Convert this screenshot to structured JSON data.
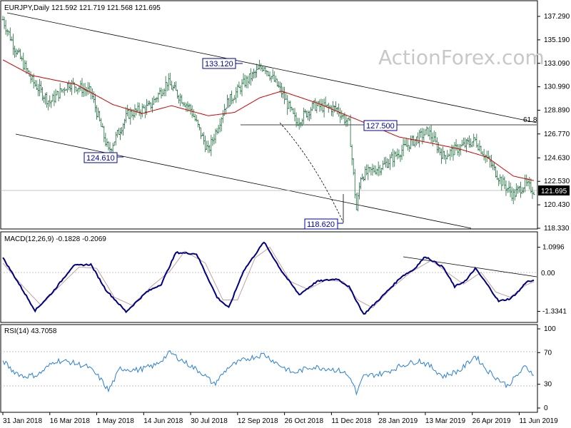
{
  "chart_data": [
    {
      "type": "candlestick",
      "panel": "price",
      "header": "EURJPY,Daily  121.592 121.719 121.568 121.695",
      "ylim": [
        118.33,
        138.5
      ],
      "y_ticks": [
        "137.290",
        "135.190",
        "133.090",
        "130.990",
        "128.890",
        "126.770",
        "124.630",
        "122.530",
        "120.430",
        "118.330"
      ],
      "current_price_label": "121.695",
      "current_price": 121.695,
      "fib_label": "61.8",
      "watermark": "ActionForex.com",
      "ma_color": "#cc0000",
      "bar_color": "#1a6b3a",
      "annotations": [
        {
          "text": "133.120",
          "date_index": 178,
          "value": 133.12
        },
        {
          "text": "124.610",
          "date_index": 72,
          "value": 124.61
        },
        {
          "text": "127.500",
          "date_index": 370,
          "value": 127.5
        },
        {
          "text": "118.620",
          "date_index": 242,
          "value": 118.62
        }
      ],
      "close_anchors": [
        [
          0,
          137.0
        ],
        [
          8,
          134.5
        ],
        [
          20,
          131.5
        ],
        [
          32,
          129.6
        ],
        [
          45,
          131.3
        ],
        [
          60,
          130.5
        ],
        [
          72,
          125.2
        ],
        [
          85,
          128.5
        ],
        [
          100,
          129.2
        ],
        [
          112,
          131.4
        ],
        [
          128,
          129.0
        ],
        [
          140,
          125.2
        ],
        [
          152,
          129.4
        ],
        [
          165,
          131.4
        ],
        [
          178,
          132.9
        ],
        [
          190,
          130.5
        ],
        [
          200,
          127.8
        ],
        [
          212,
          129.3
        ],
        [
          228,
          129.0
        ],
        [
          236,
          127.6
        ],
        [
          241,
          120.0
        ],
        [
          244,
          123.0
        ],
        [
          260,
          124.0
        ],
        [
          278,
          126.0
        ],
        [
          290,
          127.0
        ],
        [
          300,
          124.8
        ],
        [
          312,
          125.6
        ],
        [
          322,
          126.2
        ],
        [
          332,
          124.2
        ],
        [
          340,
          122.5
        ],
        [
          348,
          121.3
        ],
        [
          356,
          122.3
        ],
        [
          362,
          121.7
        ]
      ],
      "ma_anchors": [
        [
          0,
          133.4
        ],
        [
          20,
          132.0
        ],
        [
          50,
          131.2
        ],
        [
          75,
          129.4
        ],
        [
          95,
          128.6
        ],
        [
          115,
          129.3
        ],
        [
          140,
          128.4
        ],
        [
          158,
          128.7
        ],
        [
          175,
          130.0
        ],
        [
          190,
          130.6
        ],
        [
          215,
          129.5
        ],
        [
          235,
          128.4
        ],
        [
          250,
          127.6
        ],
        [
          270,
          126.5
        ],
        [
          290,
          126.0
        ],
        [
          312,
          125.4
        ],
        [
          330,
          124.7
        ],
        [
          348,
          123.0
        ],
        [
          362,
          122.6
        ]
      ]
    },
    {
      "type": "line",
      "panel": "macd",
      "header": "MACD(12,26,9) -0.1828 -0.2069",
      "ylim": [
        -1.7,
        1.55
      ],
      "y_ticks": [
        "1.0996",
        "0.00",
        "-1.3341"
      ],
      "current_value": -0.1828,
      "series": [
        {
          "name": "MACD",
          "color": "#000080",
          "anchors": [
            [
              0,
              0.7
            ],
            [
              10,
              -0.2
            ],
            [
              22,
              -1.3
            ],
            [
              34,
              -0.6
            ],
            [
              48,
              0.4
            ],
            [
              60,
              0.45
            ],
            [
              70,
              -0.5
            ],
            [
              84,
              -1.35
            ],
            [
              98,
              -0.6
            ],
            [
              108,
              -0.3
            ],
            [
              118,
              0.9
            ],
            [
              132,
              0.85
            ],
            [
              146,
              -0.8
            ],
            [
              154,
              -1.2
            ],
            [
              164,
              0.2
            ],
            [
              178,
              1.3
            ],
            [
              190,
              0.2
            ],
            [
              202,
              -0.7
            ],
            [
              214,
              -0.2
            ],
            [
              228,
              -0.1
            ],
            [
              236,
              -0.4
            ],
            [
              246,
              -1.45
            ],
            [
              258,
              -0.8
            ],
            [
              272,
              0.0
            ],
            [
              280,
              0.25
            ],
            [
              288,
              0.75
            ],
            [
              300,
              0.35
            ],
            [
              308,
              -0.4
            ],
            [
              316,
              -0.15
            ],
            [
              322,
              0.3
            ],
            [
              330,
              -0.3
            ],
            [
              338,
              -0.95
            ],
            [
              346,
              -0.85
            ],
            [
              352,
              -0.55
            ],
            [
              357,
              -0.2
            ],
            [
              362,
              -0.18
            ]
          ]
        },
        {
          "name": "Signal",
          "color": "#c0a0a0",
          "anchors": [
            [
              0,
              0.5
            ],
            [
              14,
              -0.4
            ],
            [
              26,
              -1.1
            ],
            [
              40,
              -0.3
            ],
            [
              52,
              0.35
            ],
            [
              64,
              0.3
            ],
            [
              76,
              -0.8
            ],
            [
              88,
              -1.1
            ],
            [
              102,
              -0.35
            ],
            [
              114,
              0.2
            ],
            [
              124,
              0.95
            ],
            [
              138,
              0.5
            ],
            [
              150,
              -0.9
            ],
            [
              160,
              -0.9
            ],
            [
              172,
              0.7
            ],
            [
              182,
              1.1
            ],
            [
              196,
              -0.2
            ],
            [
              208,
              -0.5
            ],
            [
              220,
              -0.15
            ],
            [
              232,
              -0.2
            ],
            [
              242,
              -0.9
            ],
            [
              252,
              -1.2
            ],
            [
              264,
              -0.5
            ],
            [
              278,
              0.15
            ],
            [
              292,
              0.6
            ],
            [
              304,
              0.1
            ],
            [
              314,
              -0.3
            ],
            [
              326,
              0.15
            ],
            [
              336,
              -0.6
            ],
            [
              346,
              -0.8
            ],
            [
              356,
              -0.35
            ],
            [
              362,
              -0.21
            ]
          ]
        }
      ]
    },
    {
      "type": "line",
      "panel": "rsi",
      "header": "RSI(14) 43.7058",
      "ylim": [
        0,
        100
      ],
      "y_ticks": [
        "100",
        "70",
        "30",
        "0"
      ],
      "series": [
        {
          "name": "RSI",
          "color": "#2a7fd4",
          "anchors": [
            [
              0,
              60
            ],
            [
              6,
              48
            ],
            [
              14,
              40
            ],
            [
              24,
              42
            ],
            [
              36,
              60
            ],
            [
              46,
              58
            ],
            [
              58,
              52
            ],
            [
              66,
              38
            ],
            [
              72,
              22
            ],
            [
              80,
              50
            ],
            [
              92,
              48
            ],
            [
              104,
              54
            ],
            [
              114,
              70
            ],
            [
              124,
              58
            ],
            [
              136,
              44
            ],
            [
              144,
              30
            ],
            [
              154,
              52
            ],
            [
              166,
              62
            ],
            [
              178,
              68
            ],
            [
              188,
              55
            ],
            [
              198,
              44
            ],
            [
              210,
              52
            ],
            [
              222,
              50
            ],
            [
              232,
              46
            ],
            [
              238,
              35
            ],
            [
              241,
              18
            ],
            [
              246,
              40
            ],
            [
              260,
              44
            ],
            [
              272,
              54
            ],
            [
              284,
              60
            ],
            [
              292,
              52
            ],
            [
              300,
              40
            ],
            [
              312,
              48
            ],
            [
              322,
              66
            ],
            [
              330,
              48
            ],
            [
              338,
              36
            ],
            [
              344,
              28
            ],
            [
              350,
              40
            ],
            [
              356,
              52
            ],
            [
              360,
              46
            ],
            [
              362,
              43.7
            ]
          ]
        }
      ]
    }
  ],
  "x_axis": {
    "labels": [
      "31 Jan 2018",
      "16 Mar 2018",
      "1 May 2018",
      "14 Jun 2018",
      "30 Jul 2018",
      "12 Sep 2018",
      "26 Oct 2018",
      "11 Dec 2018",
      "28 Jan 2019",
      "13 Mar 2019",
      "26 Apr 2019",
      "11 Jun 2019"
    ],
    "label_indices": [
      0,
      32,
      64,
      96,
      128,
      160,
      192,
      224,
      256,
      288,
      320,
      352
    ]
  }
}
